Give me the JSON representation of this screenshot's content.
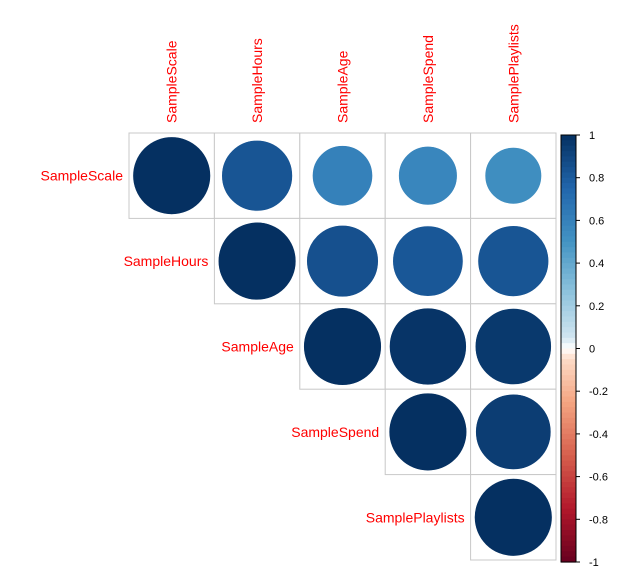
{
  "chart_data": {
    "type": "heatmap",
    "style": "circle corrplot, upper triangle",
    "variables": [
      "SampleScale",
      "SampleHours",
      "SampleAge",
      "SampleSpend",
      "SamplePlaylists"
    ],
    "matrix": [
      [
        1.0,
        0.83,
        0.6,
        0.57,
        0.53
      ],
      [
        0.83,
        1.0,
        0.85,
        0.82,
        0.83
      ],
      [
        0.6,
        0.85,
        1.0,
        0.98,
        0.96
      ],
      [
        0.57,
        0.82,
        0.98,
        1.0,
        0.94
      ],
      [
        0.53,
        0.83,
        0.96,
        0.94,
        1.0
      ]
    ],
    "colorbar": {
      "range": [
        -1,
        1
      ],
      "ticks": [
        "1",
        "0.8",
        "0.6",
        "0.4",
        "0.2",
        "0",
        "-0.2",
        "-0.4",
        "-0.6",
        "-0.8",
        "-1"
      ]
    },
    "colors": {
      "negative_end": "#67001f",
      "neutral": "#ffffff",
      "positive_end": "#053061",
      "label": "#ff0000",
      "grid": "#c8c8c8"
    }
  }
}
